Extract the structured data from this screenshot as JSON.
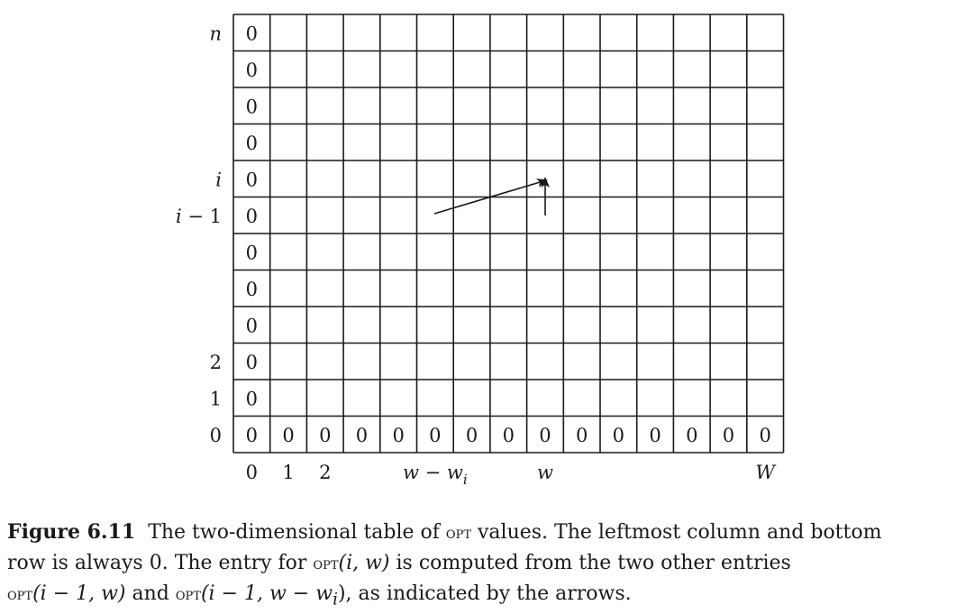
{
  "figure": {
    "row_labels": [
      "n",
      "",
      "",
      "",
      "i",
      "i − 1",
      "",
      "",
      "",
      "2",
      "1",
      "0"
    ],
    "col_labels": [
      {
        "col": 0,
        "text": "0"
      },
      {
        "col": 1,
        "text": "1"
      },
      {
        "col": 2,
        "text": "2"
      },
      {
        "col": 5,
        "text": "w − w",
        "sub": "i"
      },
      {
        "col": 8,
        "text": "w"
      },
      {
        "col": 14,
        "text": "W"
      }
    ],
    "cell_value": "0",
    "num_rows": 12,
    "num_cols": 15
  },
  "caption": {
    "label": "Figure 6.11",
    "line1_a": "The two-dimensional table of ",
    "line1_opt": "OPT",
    "line1_b": " values. The leftmost column and bottom",
    "line2_a": "row is always 0. The entry for ",
    "line2_opt": "OPT",
    "line2_b": "(i, w)",
    "line2_c": " is computed from the two other entries",
    "line3_opt1": "OPT",
    "line3_a": "(i − 1, w)",
    "line3_b": " and ",
    "line3_opt2": "OPT",
    "line3_c": "(i − 1, w − w",
    "line3_sub": "i",
    "line3_d": "), as indicated by the arrows."
  }
}
